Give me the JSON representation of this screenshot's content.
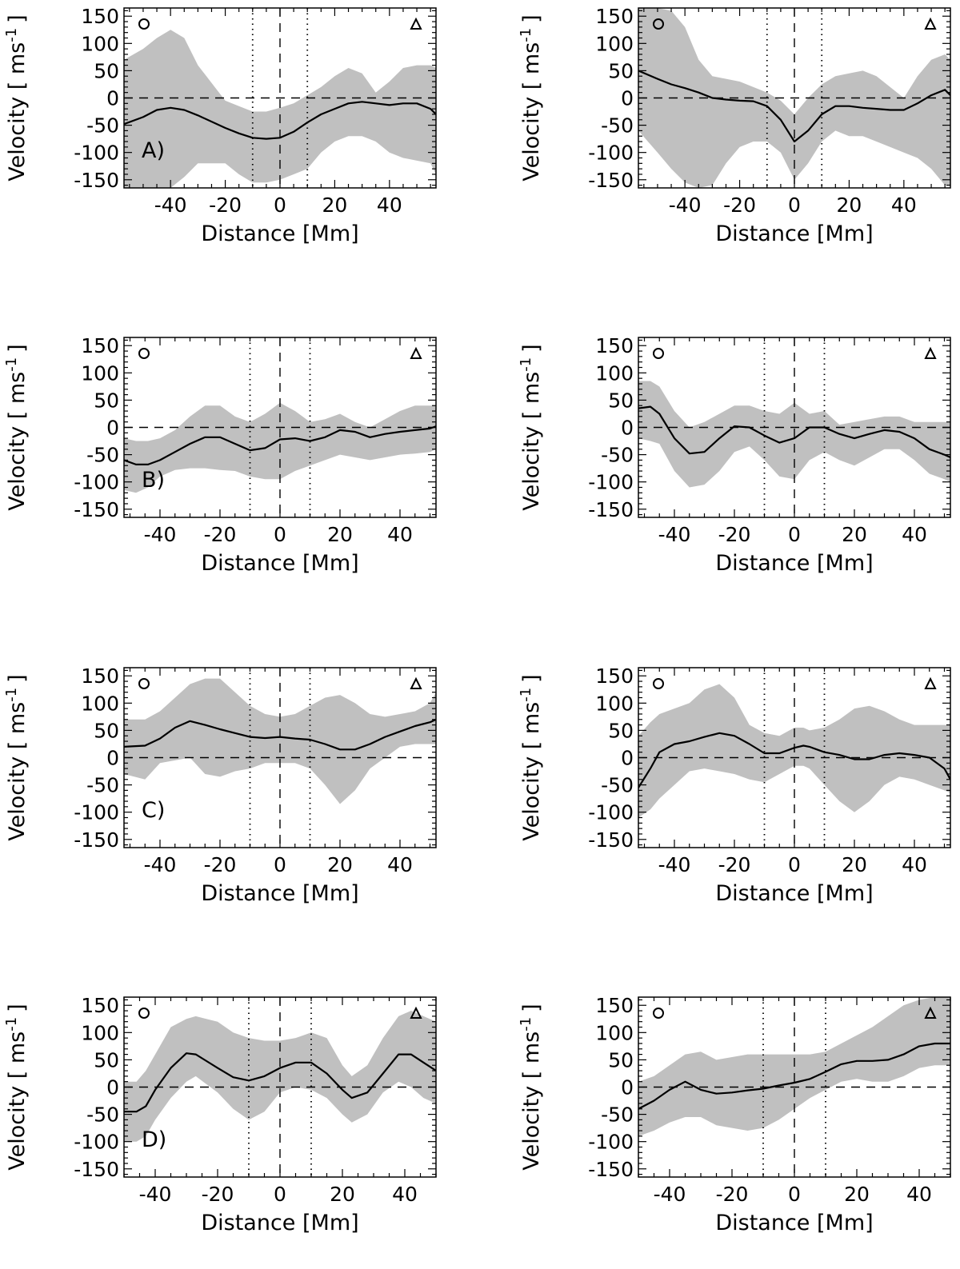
{
  "chart_data": [
    {
      "type": "line",
      "panel_label": "A)",
      "xlabel": "Distance [Mm]",
      "ylabel": "Velocity [ ms",
      "ylabel_exp": "-1",
      "ylabel_close": "]",
      "xlim": [
        -57,
        57
      ],
      "ylim": [
        -165,
        165
      ],
      "xticks": [
        -40,
        -20,
        0,
        20,
        40
      ],
      "xtick_labels": [
        "-40",
        "-20",
        "0",
        "20",
        "40"
      ],
      "yticks": [
        150,
        100,
        50,
        0,
        -50,
        -100,
        -150
      ],
      "ytick_labels": [
        "150",
        "100",
        "50",
        "0",
        "-50",
        "-100",
        "-150"
      ],
      "markers": [
        "circle",
        "triangle"
      ],
      "reference_lines": {
        "zero_dashed": 0,
        "center_dashed": 0,
        "dotted": [
          -10,
          10
        ]
      },
      "x": [
        -57,
        -50,
        -45,
        -40,
        -35,
        -30,
        -20,
        -15,
        -10,
        -5,
        0,
        5,
        10,
        15,
        20,
        25,
        30,
        35,
        40,
        45,
        50,
        55,
        57
      ],
      "mean": [
        -48,
        -35,
        -22,
        -18,
        -22,
        -32,
        -55,
        -65,
        -73,
        -75,
        -73,
        -62,
        -45,
        -30,
        -20,
        -10,
        -7,
        -10,
        -13,
        -10,
        -10,
        -20,
        -30
      ],
      "upper": [
        70,
        90,
        110,
        125,
        110,
        60,
        -5,
        -15,
        -25,
        -25,
        -18,
        -10,
        5,
        20,
        40,
        55,
        45,
        10,
        30,
        55,
        60,
        60,
        55
      ],
      "lower": [
        -170,
        -175,
        -170,
        -165,
        -145,
        -120,
        -120,
        -140,
        -155,
        -155,
        -150,
        -140,
        -130,
        -100,
        -80,
        -70,
        -70,
        -80,
        -100,
        -110,
        -115,
        -120,
        -140
      ]
    },
    {
      "type": "line",
      "panel_label": "",
      "xlabel": "Distance [Mm]",
      "ylabel": "Velocity [ ms",
      "ylabel_exp": "-1",
      "ylabel_close": "]",
      "xlim": [
        -57,
        57
      ],
      "ylim": [
        -165,
        165
      ],
      "xticks": [
        -40,
        -20,
        0,
        20,
        40
      ],
      "xtick_labels": [
        "-40",
        "-20",
        "0",
        "20",
        "40"
      ],
      "yticks": [
        150,
        100,
        50,
        0,
        -50,
        -100,
        -150
      ],
      "ytick_labels": [
        "150",
        "100",
        "50",
        "0",
        "-50",
        "-100",
        "-150"
      ],
      "markers": [
        "circle",
        "triangle"
      ],
      "reference_lines": {
        "zero_dashed": 0,
        "center_dashed": 0,
        "dotted": [
          -10,
          10
        ]
      },
      "x": [
        -57,
        -50,
        -45,
        -40,
        -35,
        -30,
        -25,
        -20,
        -15,
        -10,
        -5,
        0,
        5,
        10,
        15,
        20,
        25,
        30,
        35,
        40,
        45,
        50,
        55,
        57
      ],
      "mean": [
        50,
        35,
        25,
        18,
        10,
        0,
        -3,
        -5,
        -6,
        -15,
        -40,
        -80,
        -60,
        -30,
        -15,
        -15,
        -18,
        -20,
        -22,
        -22,
        -10,
        5,
        15,
        5
      ],
      "upper": [
        165,
        165,
        160,
        130,
        70,
        40,
        35,
        30,
        20,
        10,
        -5,
        -30,
        0,
        25,
        40,
        45,
        50,
        40,
        20,
        0,
        40,
        70,
        80,
        70
      ],
      "lower": [
        -60,
        -100,
        -130,
        -155,
        -165,
        -160,
        -120,
        -90,
        -80,
        -80,
        -100,
        -150,
        -120,
        -80,
        -60,
        -70,
        -70,
        -80,
        -90,
        -100,
        -110,
        -130,
        -160,
        -160
      ]
    },
    {
      "type": "line",
      "panel_label": "B)",
      "xlabel": "Distance [Mm]",
      "ylabel": "Velocity [ ms",
      "ylabel_exp": "-1",
      "ylabel_close": "]",
      "xlim": [
        -52,
        52
      ],
      "ylim": [
        -165,
        165
      ],
      "xticks": [
        -40,
        -20,
        0,
        20,
        40
      ],
      "xtick_labels": [
        "-40",
        "-20",
        "0",
        "20",
        "40"
      ],
      "yticks": [
        150,
        100,
        50,
        0,
        -50,
        -100,
        -150
      ],
      "ytick_labels": [
        "150",
        "100",
        "50",
        "0",
        "-50",
        "-100",
        "-150"
      ],
      "markers": [
        "circle",
        "triangle"
      ],
      "reference_lines": {
        "zero_dashed": 0,
        "center_dashed": 0,
        "dotted": [
          -10,
          10
        ]
      },
      "x": [
        -52,
        -48,
        -44,
        -40,
        -35,
        -30,
        -25,
        -20,
        -15,
        -10,
        -5,
        0,
        5,
        10,
        15,
        20,
        25,
        30,
        35,
        40,
        45,
        50,
        52
      ],
      "mean": [
        -60,
        -68,
        -68,
        -60,
        -45,
        -30,
        -18,
        -18,
        -30,
        -42,
        -38,
        -22,
        -20,
        -25,
        -18,
        -5,
        -8,
        -18,
        -12,
        -8,
        -5,
        -2,
        2
      ],
      "upper": [
        -20,
        -25,
        -25,
        -20,
        -5,
        20,
        40,
        40,
        20,
        10,
        25,
        45,
        30,
        10,
        15,
        25,
        10,
        0,
        15,
        30,
        40,
        40,
        40
      ],
      "lower": [
        -115,
        -120,
        -110,
        -90,
        -78,
        -75,
        -75,
        -78,
        -80,
        -90,
        -95,
        -95,
        -80,
        -70,
        -60,
        -50,
        -55,
        -60,
        -55,
        -50,
        -48,
        -45,
        -40
      ]
    },
    {
      "type": "line",
      "panel_label": "",
      "xlabel": "Distance [Mm]",
      "ylabel": "Velocity [ ms",
      "ylabel_exp": "-1",
      "ylabel_close": "]",
      "xlim": [
        -52,
        52
      ],
      "ylim": [
        -165,
        165
      ],
      "xticks": [
        -40,
        -20,
        0,
        20,
        40
      ],
      "xtick_labels": [
        "-40",
        "-20",
        "0",
        "20",
        "40"
      ],
      "yticks": [
        150,
        100,
        50,
        0,
        -50,
        -100,
        -150
      ],
      "ytick_labels": [
        "150",
        "100",
        "50",
        "0",
        "-50",
        "-100",
        "-150"
      ],
      "markers": [
        "circle",
        "triangle"
      ],
      "reference_lines": {
        "zero_dashed": 0,
        "center_dashed": 0,
        "dotted": [
          -10,
          10
        ]
      },
      "x": [
        -52,
        -48,
        -45,
        -40,
        -35,
        -30,
        -25,
        -20,
        -15,
        -10,
        -5,
        0,
        5,
        10,
        15,
        20,
        25,
        30,
        35,
        40,
        45,
        50,
        52
      ],
      "mean": [
        35,
        38,
        25,
        -20,
        -48,
        -45,
        -20,
        2,
        0,
        -15,
        -28,
        -20,
        0,
        0,
        -12,
        -20,
        -12,
        -5,
        -8,
        -20,
        -40,
        -50,
        -55
      ],
      "upper": [
        85,
        85,
        75,
        30,
        0,
        10,
        25,
        40,
        40,
        30,
        25,
        45,
        25,
        30,
        5,
        10,
        15,
        20,
        20,
        10,
        10,
        10,
        10
      ],
      "lower": [
        -20,
        -25,
        -30,
        -80,
        -110,
        -105,
        -80,
        -45,
        -35,
        -60,
        -90,
        -95,
        -60,
        -45,
        -60,
        -70,
        -55,
        -40,
        -40,
        -60,
        -85,
        -95,
        -100
      ]
    },
    {
      "type": "line",
      "panel_label": "C)",
      "xlabel": "Distance [Mm]",
      "ylabel": "Velocity [ ms",
      "ylabel_exp": "-1",
      "ylabel_close": "]",
      "xlim": [
        -52,
        52
      ],
      "ylim": [
        -165,
        165
      ],
      "xticks": [
        -40,
        -20,
        0,
        20,
        40
      ],
      "xtick_labels": [
        "-40",
        "-20",
        "0",
        "20",
        "40"
      ],
      "yticks": [
        150,
        100,
        50,
        0,
        -50,
        -100,
        -150
      ],
      "ytick_labels": [
        "150",
        "100",
        "50",
        "0",
        "-50",
        "-100",
        "-150"
      ],
      "markers": [
        "circle",
        "triangle"
      ],
      "reference_lines": {
        "zero_dashed": 0,
        "center_dashed": 0,
        "dotted": [
          -10,
          10
        ]
      },
      "x": [
        -52,
        -45,
        -40,
        -35,
        -30,
        -25,
        -20,
        -15,
        -10,
        -5,
        0,
        5,
        10,
        15,
        20,
        25,
        30,
        35,
        40,
        45,
        50,
        52
      ],
      "mean": [
        20,
        22,
        35,
        55,
        67,
        60,
        52,
        45,
        38,
        36,
        38,
        35,
        33,
        25,
        15,
        15,
        25,
        38,
        48,
        58,
        65,
        70
      ],
      "upper": [
        70,
        70,
        85,
        110,
        135,
        145,
        145,
        120,
        95,
        80,
        75,
        80,
        95,
        110,
        115,
        100,
        80,
        75,
        80,
        85,
        100,
        120
      ],
      "lower": [
        -30,
        -40,
        -10,
        -5,
        0,
        -30,
        -35,
        -25,
        -20,
        -10,
        -10,
        -10,
        -20,
        -50,
        -85,
        -60,
        -20,
        0,
        20,
        25,
        25,
        25
      ]
    },
    {
      "type": "line",
      "panel_label": "",
      "xlabel": "Distance [Mm]",
      "ylabel": "Velocity [ ms",
      "ylabel_exp": "-1",
      "ylabel_close": "]",
      "xlim": [
        -52,
        52
      ],
      "ylim": [
        -165,
        165
      ],
      "xticks": [
        -40,
        -20,
        0,
        20,
        40
      ],
      "xtick_labels": [
        "-40",
        "-20",
        "0",
        "20",
        "40"
      ],
      "yticks": [
        150,
        100,
        50,
        0,
        -50,
        -100,
        -150
      ],
      "ytick_labels": [
        "150",
        "100",
        "50",
        "0",
        "-50",
        "-100",
        "-150"
      ],
      "markers": [
        "circle",
        "triangle"
      ],
      "reference_lines": {
        "zero_dashed": 0,
        "center_dashed": 0,
        "dotted": [
          -10,
          10
        ]
      },
      "x": [
        -52,
        -48,
        -45,
        -40,
        -35,
        -30,
        -25,
        -20,
        -15,
        -10,
        -5,
        0,
        3,
        5,
        10,
        15,
        20,
        25,
        30,
        35,
        40,
        45,
        50,
        52
      ],
      "mean": [
        -55,
        -20,
        10,
        25,
        30,
        38,
        45,
        40,
        25,
        8,
        8,
        18,
        22,
        20,
        10,
        5,
        -3,
        -3,
        5,
        8,
        5,
        0,
        -20,
        -40
      ],
      "upper": [
        40,
        65,
        80,
        90,
        100,
        125,
        135,
        110,
        60,
        45,
        40,
        55,
        55,
        50,
        55,
        70,
        90,
        95,
        85,
        70,
        60,
        60,
        60,
        60
      ],
      "lower": [
        -110,
        -95,
        -75,
        -50,
        -25,
        -20,
        -25,
        -30,
        -40,
        -45,
        -30,
        -15,
        -15,
        -20,
        -50,
        -80,
        -100,
        -80,
        -50,
        -35,
        -40,
        -50,
        -60,
        -65
      ]
    },
    {
      "type": "line",
      "panel_label": "D)",
      "xlabel": "Distance [Mm]",
      "ylabel": "Velocity [ ms",
      "ylabel_exp": "-1",
      "ylabel_close": "]",
      "xlim": [
        -50,
        50
      ],
      "ylim": [
        -165,
        165
      ],
      "xticks": [
        -40,
        -20,
        0,
        20,
        40
      ],
      "xtick_labels": [
        "-40",
        "-20",
        "0",
        "20",
        "40"
      ],
      "yticks": [
        150,
        100,
        50,
        0,
        -50,
        -100,
        -150
      ],
      "ytick_labels": [
        "150",
        "100",
        "50",
        "0",
        "-50",
        "-100",
        "-150"
      ],
      "markers": [
        "circle",
        "triangle"
      ],
      "reference_lines": {
        "zero_dashed": 0,
        "center_dashed": 0,
        "dotted": [
          -10,
          10
        ]
      },
      "x": [
        -50,
        -46,
        -43,
        -40,
        -35,
        -30,
        -27,
        -20,
        -15,
        -10,
        -5,
        0,
        5,
        10,
        15,
        20,
        23,
        28,
        33,
        38,
        42,
        46,
        50
      ],
      "mean": [
        -45,
        -45,
        -35,
        -5,
        35,
        62,
        60,
        35,
        18,
        12,
        20,
        35,
        45,
        45,
        25,
        -5,
        -20,
        -10,
        25,
        60,
        60,
        45,
        30
      ],
      "upper": [
        10,
        10,
        30,
        60,
        110,
        125,
        130,
        120,
        100,
        90,
        85,
        85,
        90,
        100,
        90,
        40,
        20,
        40,
        90,
        130,
        140,
        130,
        120
      ],
      "lower": [
        -100,
        -100,
        -90,
        -60,
        -20,
        10,
        20,
        -10,
        -40,
        -60,
        -45,
        -10,
        0,
        -5,
        -20,
        -50,
        -65,
        -50,
        -10,
        10,
        0,
        -20,
        -30
      ]
    },
    {
      "type": "line",
      "panel_label": "",
      "xlabel": "Distance [Mm]",
      "ylabel": "Velocity [ ms",
      "ylabel_exp": "-1",
      "ylabel_close": "]",
      "xlim": [
        -50,
        50
      ],
      "ylim": [
        -165,
        165
      ],
      "xticks": [
        -40,
        -20,
        0,
        20,
        40
      ],
      "xtick_labels": [
        "-40",
        "-20",
        "0",
        "20",
        "40"
      ],
      "yticks": [
        150,
        100,
        50,
        0,
        -50,
        -100,
        -150
      ],
      "ytick_labels": [
        "150",
        "100",
        "50",
        "0",
        "-50",
        "-100",
        "-150"
      ],
      "markers": [
        "circle",
        "triangle"
      ],
      "reference_lines": {
        "zero_dashed": 0,
        "center_dashed": 0,
        "dotted": [
          -10,
          10
        ]
      },
      "x": [
        -50,
        -45,
        -40,
        -35,
        -30,
        -25,
        -20,
        -15,
        -10,
        -5,
        0,
        5,
        10,
        15,
        20,
        25,
        30,
        35,
        40,
        45,
        50
      ],
      "mean": [
        -40,
        -25,
        -5,
        10,
        -5,
        -12,
        -10,
        -6,
        -3,
        3,
        8,
        15,
        28,
        42,
        48,
        48,
        50,
        60,
        75,
        80,
        80
      ],
      "upper": [
        10,
        20,
        40,
        60,
        65,
        50,
        55,
        60,
        60,
        60,
        60,
        60,
        65,
        80,
        95,
        110,
        130,
        150,
        160,
        165,
        165
      ],
      "lower": [
        -90,
        -80,
        -65,
        -55,
        -55,
        -70,
        -75,
        -80,
        -75,
        -60,
        -40,
        -20,
        -5,
        10,
        15,
        10,
        10,
        20,
        35,
        40,
        40
      ]
    }
  ]
}
